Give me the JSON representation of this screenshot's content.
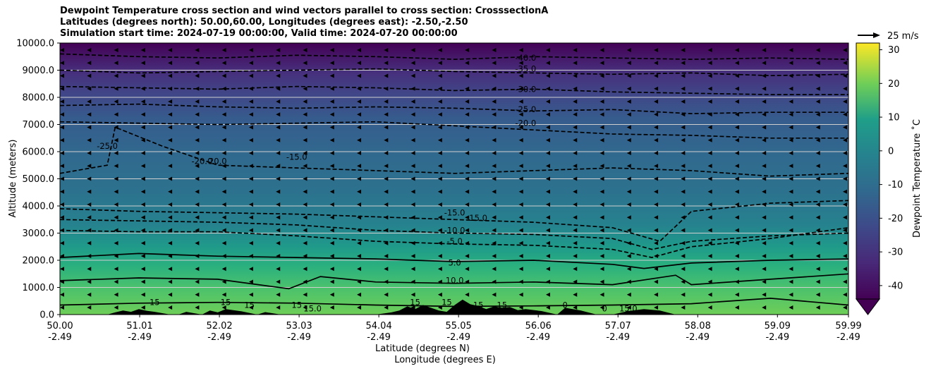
{
  "titles": [
    "Dewpoint Temperature cross section and wind vectors parallel to cross section: CrosssectionA",
    "Latitudes (degrees north): 50.00,60.00, Longitudes (degrees east): -2.50,-2.50",
    "Simulation start time: 2024-07-19 00:00:00, Valid time: 2024-07-20 00:00:00"
  ],
  "chart_data": {
    "type": "heatmap",
    "title": "Dewpoint Temperature cross section and wind vectors parallel to cross section: CrosssectionA",
    "ylabel": "Altitude (meters)",
    "xlabel": "Latitude (degrees N)",
    "xlabel2": "Longitude (degrees E)",
    "xlim": [
      50.0,
      59.99
    ],
    "ylim": [
      0,
      10000
    ],
    "grid": "horizontal",
    "y_ticks": [
      "0.0",
      "1000.0",
      "2000.0",
      "3000.0",
      "4000.0",
      "5000.0",
      "6000.0",
      "7000.0",
      "8000.0",
      "9000.0",
      "10000.0"
    ],
    "x_ticks": [
      {
        "lat": "50.00",
        "lon": "-2.49"
      },
      {
        "lat": "51.01",
        "lon": "-2.49"
      },
      {
        "lat": "52.02",
        "lon": "-2.49"
      },
      {
        "lat": "53.03",
        "lon": "-2.49"
      },
      {
        "lat": "54.04",
        "lon": "-2.49"
      },
      {
        "lat": "55.05",
        "lon": "-2.49"
      },
      {
        "lat": "56.06",
        "lon": "-2.49"
      },
      {
        "lat": "57.07",
        "lon": "-2.49"
      },
      {
        "lat": "58.08",
        "lon": "-2.49"
      },
      {
        "lat": "59.09",
        "lon": "-2.49"
      },
      {
        "lat": "59.99",
        "lon": "-2.49"
      }
    ],
    "colorbar": {
      "label": "Dewpoint Temperature $^\\circ$C",
      "label_display": "Dewpoint Temperature ˚C",
      "range": [
        -44,
        32
      ],
      "ticks": [
        -40,
        -30,
        -20,
        -10,
        0,
        10,
        20,
        30
      ],
      "colormap": "viridis",
      "extend": "min"
    },
    "quiver_key": "25 m/s",
    "contours": [
      {
        "level": -40.0,
        "label": "-40.0",
        "style": "dashed",
        "x": [
          50.0,
          51,
          52,
          53,
          54,
          55,
          56,
          57,
          58,
          59,
          59.99
        ],
        "y": [
          9600,
          9500,
          9450,
          9550,
          9500,
          9400,
          9500,
          9450,
          9400,
          9450,
          9400
        ]
      },
      {
        "level": -35.0,
        "label": "-35.0",
        "style": "dashed",
        "x": [
          50.0,
          51,
          52,
          53,
          54,
          55,
          56,
          57,
          58,
          59,
          59.99
        ],
        "y": [
          9000,
          8900,
          8950,
          9000,
          9050,
          8950,
          8900,
          8850,
          8900,
          8800,
          8850
        ]
      },
      {
        "level": -30.0,
        "label": "-30.0",
        "style": "dashed",
        "x": [
          50.0,
          51,
          52,
          53,
          54,
          55,
          56,
          57,
          58,
          59,
          59.99
        ],
        "y": [
          8400,
          8350,
          8300,
          8400,
          8350,
          8250,
          8300,
          8200,
          8150,
          8100,
          8100
        ]
      },
      {
        "level": -25.0,
        "label": "-25.0",
        "style": "dashed",
        "x": [
          50.0,
          51,
          52,
          53,
          54,
          55,
          56,
          57,
          58,
          59,
          59.99
        ],
        "y": [
          7700,
          7750,
          7650,
          7600,
          7650,
          7600,
          7500,
          7550,
          7400,
          7450,
          7450
        ]
      },
      {
        "level": -20.0,
        "label": "-20.0",
        "style": "dashed",
        "x": [
          50.0,
          51,
          52,
          53,
          54,
          55,
          56,
          57,
          58,
          59,
          59.99
        ],
        "y": [
          7100,
          7050,
          7000,
          7050,
          7100,
          6950,
          6800,
          6650,
          6600,
          6500,
          6500
        ]
      },
      {
        "level": -20.0,
        "label": "-20.0",
        "style": "dashed",
        "x": [
          50.0,
          50.6,
          50.7,
          51.3,
          52.0,
          53.0,
          54.0,
          55.0,
          56.0,
          57.0,
          58.0,
          59.0,
          59.99
        ],
        "y": [
          5200,
          5500,
          6900,
          6200,
          5500,
          5400,
          5300,
          5200,
          5300,
          5400,
          5300,
          5100,
          5200
        ]
      },
      {
        "level": -15.0,
        "label": "-15.0",
        "style": "dashed",
        "x": [
          50.0,
          51,
          52,
          53,
          54,
          55,
          56,
          57,
          57.6,
          58,
          59,
          59.99
        ],
        "y": [
          3900,
          3800,
          3750,
          3700,
          3600,
          3500,
          3400,
          3200,
          2700,
          3800,
          4100,
          4200
        ]
      },
      {
        "level": -10.0,
        "label": "-10.0",
        "style": "dashed",
        "x": [
          50.0,
          51,
          52,
          53,
          54,
          55,
          56,
          57,
          57.5,
          58,
          59,
          59.99
        ],
        "y": [
          3500,
          3450,
          3400,
          3300,
          3100,
          3000,
          2950,
          2800,
          2400,
          2700,
          2900,
          3000
        ]
      },
      {
        "level": -5.0,
        "label": "-5.0",
        "style": "dashed",
        "x": [
          50.0,
          51,
          52,
          53,
          54,
          55,
          56,
          57,
          57.5,
          58,
          59,
          59.99
        ],
        "y": [
          3100,
          3050,
          3050,
          2900,
          2700,
          2600,
          2550,
          2400,
          2100,
          2500,
          2800,
          3200
        ]
      },
      {
        "level": 5.0,
        "label": "5.0",
        "style": "solid",
        "x": [
          50.0,
          51,
          52,
          53,
          54,
          55,
          56,
          57,
          57.4,
          58,
          59,
          59.99
        ],
        "y": [
          2100,
          2250,
          2150,
          2100,
          2050,
          1950,
          2000,
          1850,
          1700,
          1900,
          2000,
          2050
        ]
      },
      {
        "level": 10.0,
        "label": "10.0",
        "style": "solid",
        "x": [
          50.0,
          51,
          52,
          52.9,
          53.3,
          54,
          55,
          56,
          57,
          57.8,
          58,
          59,
          59.99
        ],
        "y": [
          1250,
          1350,
          1300,
          950,
          1400,
          1200,
          1150,
          1200,
          1100,
          1450,
          1100,
          1300,
          1500
        ]
      },
      {
        "level": 15.0,
        "label": "15.0",
        "style": "solid",
        "x": [
          50.0,
          51,
          52,
          53,
          54,
          55,
          56,
          57,
          58,
          59,
          59.99
        ],
        "y": [
          350,
          420,
          450,
          420,
          350,
          300,
          320,
          350,
          400,
          600,
          350
        ]
      }
    ],
    "contour_labels": [
      {
        "text": "-40.0",
        "lat": 55.9,
        "alt": 9350
      },
      {
        "text": "-35.0",
        "lat": 55.9,
        "alt": 8950
      },
      {
        "text": "-30.0",
        "lat": 55.9,
        "alt": 8200
      },
      {
        "text": "-25.0",
        "lat": 55.9,
        "alt": 7450
      },
      {
        "text": "-20.0",
        "lat": 55.9,
        "alt": 6950
      },
      {
        "text": "-25.0",
        "lat": 50.6,
        "alt": 6100
      },
      {
        "text": "-20.0",
        "lat": 51.8,
        "alt": 5550
      },
      {
        "text": "20.0",
        "lat": 52.0,
        "alt": 5550
      },
      {
        "text": "-15.0",
        "lat": 53.0,
        "alt": 5700
      },
      {
        "text": "-15.0",
        "lat": 55.0,
        "alt": 3650
      },
      {
        "text": "15.0",
        "lat": 55.3,
        "alt": 3450
      },
      {
        "text": "-10.0",
        "lat": 55.0,
        "alt": 3000
      },
      {
        "text": "-5.0",
        "lat": 55.0,
        "alt": 2600
      },
      {
        "text": "5.0",
        "lat": 55.0,
        "alt": 1800
      },
      {
        "text": "10.0",
        "lat": 55.0,
        "alt": 1150
      },
      {
        "text": "15",
        "lat": 51.2,
        "alt": 350
      },
      {
        "text": "15",
        "lat": 52.1,
        "alt": 350
      },
      {
        "text": "15",
        "lat": 52.4,
        "alt": 250
      },
      {
        "text": "15",
        "lat": 53.0,
        "alt": 250
      },
      {
        "text": "15.0",
        "lat": 53.2,
        "alt": 120
      },
      {
        "text": "15",
        "lat": 54.5,
        "alt": 350
      },
      {
        "text": "15",
        "lat": 54.9,
        "alt": 350
      },
      {
        "text": "15",
        "lat": 55.3,
        "alt": 250
      },
      {
        "text": "15",
        "lat": 55.6,
        "alt": 250
      },
      {
        "text": "0",
        "lat": 56.4,
        "alt": 250
      },
      {
        "text": "0",
        "lat": 56.9,
        "alt": 120
      },
      {
        "text": "15.0",
        "lat": 57.2,
        "alt": 120
      }
    ],
    "terrain": {
      "lat": [
        50.0,
        50.6,
        50.7,
        50.8,
        50.9,
        51.0,
        51.1,
        51.2,
        51.4,
        51.5,
        51.6,
        51.8,
        51.9,
        52.0,
        52.1,
        52.3,
        52.5,
        52.6,
        52.8,
        53.0,
        53.2,
        53.4,
        53.6,
        54.0,
        54.2,
        54.3,
        54.4,
        54.5,
        54.6,
        54.7,
        54.8,
        54.9,
        55.0,
        55.1,
        55.2,
        55.3,
        55.4,
        55.5,
        55.6,
        55.7,
        55.8,
        55.9,
        56.1,
        56.3,
        56.4,
        56.6,
        56.8,
        57.0,
        57.2,
        57.4,
        57.6,
        57.8,
        58.0,
        59.99
      ],
      "alt": [
        0,
        0,
        80,
        150,
        100,
        200,
        140,
        100,
        0,
        0,
        100,
        0,
        150,
        80,
        200,
        120,
        0,
        90,
        0,
        0,
        0,
        0,
        0,
        0,
        80,
        150,
        300,
        200,
        350,
        250,
        150,
        100,
        350,
        550,
        380,
        320,
        200,
        300,
        250,
        280,
        160,
        200,
        130,
        0,
        250,
        150,
        0,
        0,
        130,
        200,
        150,
        0,
        0,
        0
      ]
    }
  }
}
